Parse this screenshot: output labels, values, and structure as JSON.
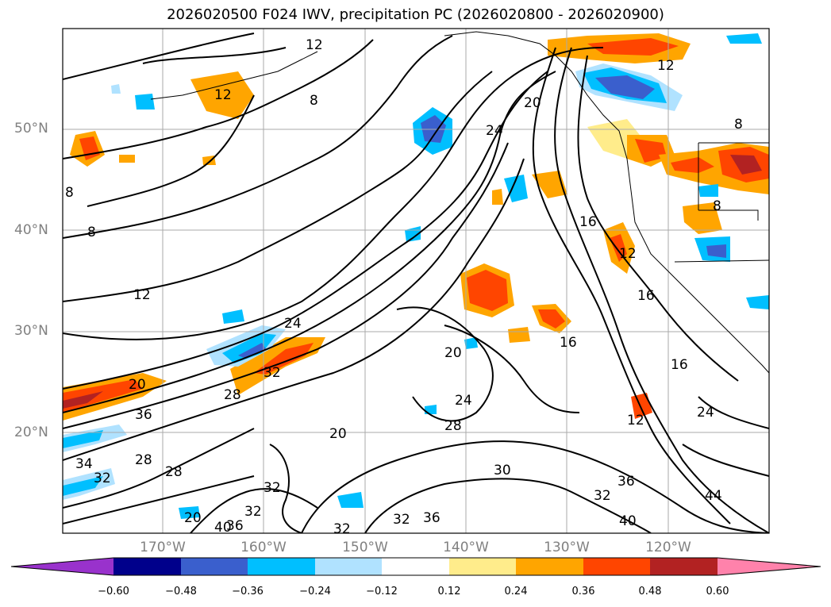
{
  "title": "2026020500 F024 IWV, precipitation PC (2026020800 - 2026020900)",
  "map": {
    "lat_labels": [
      "50°N",
      "40°N",
      "30°N",
      "20°N"
    ],
    "lon_labels": [
      "170°W",
      "160°W",
      "150°W",
      "140°W",
      "130°W",
      "120°W"
    ],
    "contour_labels": [
      "12",
      "12",
      "8",
      "8",
      "8",
      "12",
      "24",
      "20",
      "16",
      "16",
      "12",
      "8",
      "12",
      "24",
      "32",
      "20",
      "28",
      "36",
      "20",
      "24",
      "28",
      "20",
      "32",
      "28",
      "32",
      "16",
      "12",
      "24",
      "16",
      "44",
      "40",
      "36",
      "32",
      "36",
      "32",
      "32",
      "34",
      "32",
      "28",
      "30",
      "40",
      "36",
      "20",
      "8"
    ]
  },
  "colorbar": {
    "ticks": [
      "−0.60",
      "−0.48",
      "−0.36",
      "−0.24",
      "−0.12",
      "0.12",
      "0.24",
      "0.36",
      "0.48",
      "0.60"
    ],
    "colors": [
      "#9932cc",
      "#00008b",
      "#3a5fcd",
      "#00bfff",
      "#b0e2ff",
      "#ffffff",
      "#ffec8b",
      "#ffa500",
      "#ff4500",
      "#b22222",
      "#ff82ab"
    ]
  }
}
